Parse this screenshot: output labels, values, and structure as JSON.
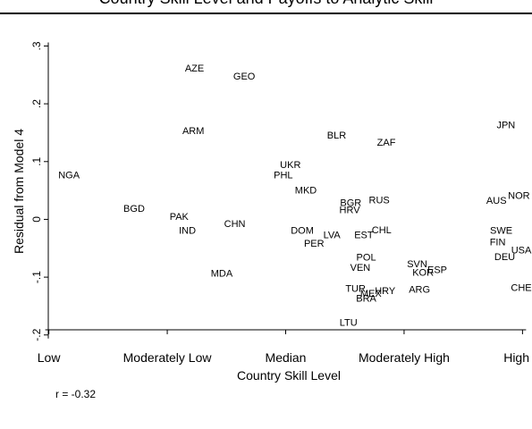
{
  "chart_data": {
    "type": "scatter",
    "title": "Country Skill Level and Payoffs to Analytic Skill",
    "xlabel": "Country Skill Level",
    "ylabel": "Residual from Model 4",
    "xlim": [
      0.95,
      5.05
    ],
    "ylim": [
      -0.205,
      0.31
    ],
    "xticks": [
      {
        "value": 1,
        "label": "Low"
      },
      {
        "value": 2,
        "label": "Moderately Low"
      },
      {
        "value": 3,
        "label": "Median"
      },
      {
        "value": 4,
        "label": "Moderately High"
      },
      {
        "value": 5,
        "label": "High"
      }
    ],
    "yticks": [
      {
        "value": -0.2,
        "label": "-.2"
      },
      {
        "value": -0.1,
        "label": "-.1"
      },
      {
        "value": 0,
        "label": "0"
      },
      {
        "value": 0.1,
        "label": ".1"
      },
      {
        "value": 0.2,
        "label": ".2"
      },
      {
        "value": 0.3,
        "label": ".3"
      }
    ],
    "grid": false,
    "marker": "country-code-label",
    "points": [
      {
        "label": "AZE",
        "x": 2.23,
        "y": 0.262
      },
      {
        "label": "GEO",
        "x": 2.65,
        "y": 0.248
      },
      {
        "label": "ARM",
        "x": 2.22,
        "y": 0.154
      },
      {
        "label": "BLR",
        "x": 3.43,
        "y": 0.146
      },
      {
        "label": "ZAF",
        "x": 3.85,
        "y": 0.134
      },
      {
        "label": "JPN",
        "x": 4.86,
        "y": 0.164
      },
      {
        "label": "UKR",
        "x": 3.04,
        "y": 0.095
      },
      {
        "label": "NGA",
        "x": 1.17,
        "y": 0.077
      },
      {
        "label": "PHL",
        "x": 2.98,
        "y": 0.077
      },
      {
        "label": "MKD",
        "x": 3.17,
        "y": 0.051
      },
      {
        "label": "AUS",
        "x": 4.78,
        "y": 0.033
      },
      {
        "label": "NOR",
        "x": 4.97,
        "y": 0.042
      },
      {
        "label": "BGR",
        "x": 3.55,
        "y": 0.029
      },
      {
        "label": "RUS",
        "x": 3.79,
        "y": 0.034
      },
      {
        "label": "HRV",
        "x": 3.54,
        "y": 0.017
      },
      {
        "label": "BGD",
        "x": 1.72,
        "y": 0.019
      },
      {
        "label": "PAK",
        "x": 2.1,
        "y": 0.005
      },
      {
        "label": "CHN",
        "x": 2.57,
        "y": -0.007
      },
      {
        "label": "IND",
        "x": 2.17,
        "y": -0.019
      },
      {
        "label": "DOM",
        "x": 3.14,
        "y": -0.019
      },
      {
        "label": "LVA",
        "x": 3.39,
        "y": -0.026
      },
      {
        "label": "EST",
        "x": 3.66,
        "y": -0.026
      },
      {
        "label": "CHL",
        "x": 3.81,
        "y": -0.018
      },
      {
        "label": "PER",
        "x": 3.24,
        "y": -0.041
      },
      {
        "label": "SWE",
        "x": 4.82,
        "y": -0.019
      },
      {
        "label": "FIN",
        "x": 4.79,
        "y": -0.039
      },
      {
        "label": "DEU",
        "x": 4.85,
        "y": -0.064
      },
      {
        "label": "USA",
        "x": 5.06,
        "y": -0.053
      },
      {
        "label": "POL",
        "x": 3.68,
        "y": -0.065
      },
      {
        "label": "VEN",
        "x": 3.63,
        "y": -0.083
      },
      {
        "label": "MDA",
        "x": 2.46,
        "y": -0.093
      },
      {
        "label": "SVN",
        "x": 4.11,
        "y": -0.077
      },
      {
        "label": "KOR",
        "x": 4.16,
        "y": -0.091
      },
      {
        "label": "ESP",
        "x": 4.28,
        "y": -0.087
      },
      {
        "label": "TUR",
        "x": 3.59,
        "y": -0.119
      },
      {
        "label": "MEX",
        "x": 3.72,
        "y": -0.128
      },
      {
        "label": "HRY",
        "x": 3.84,
        "y": -0.123
      },
      {
        "label": "BRA",
        "x": 3.68,
        "y": -0.136
      },
      {
        "label": "ARG",
        "x": 4.13,
        "y": -0.121
      },
      {
        "label": "CHE",
        "x": 5.01,
        "y": -0.118
      },
      {
        "label": "LTU",
        "x": 3.53,
        "y": -0.178
      }
    ]
  },
  "footnote": "r = -0.32"
}
